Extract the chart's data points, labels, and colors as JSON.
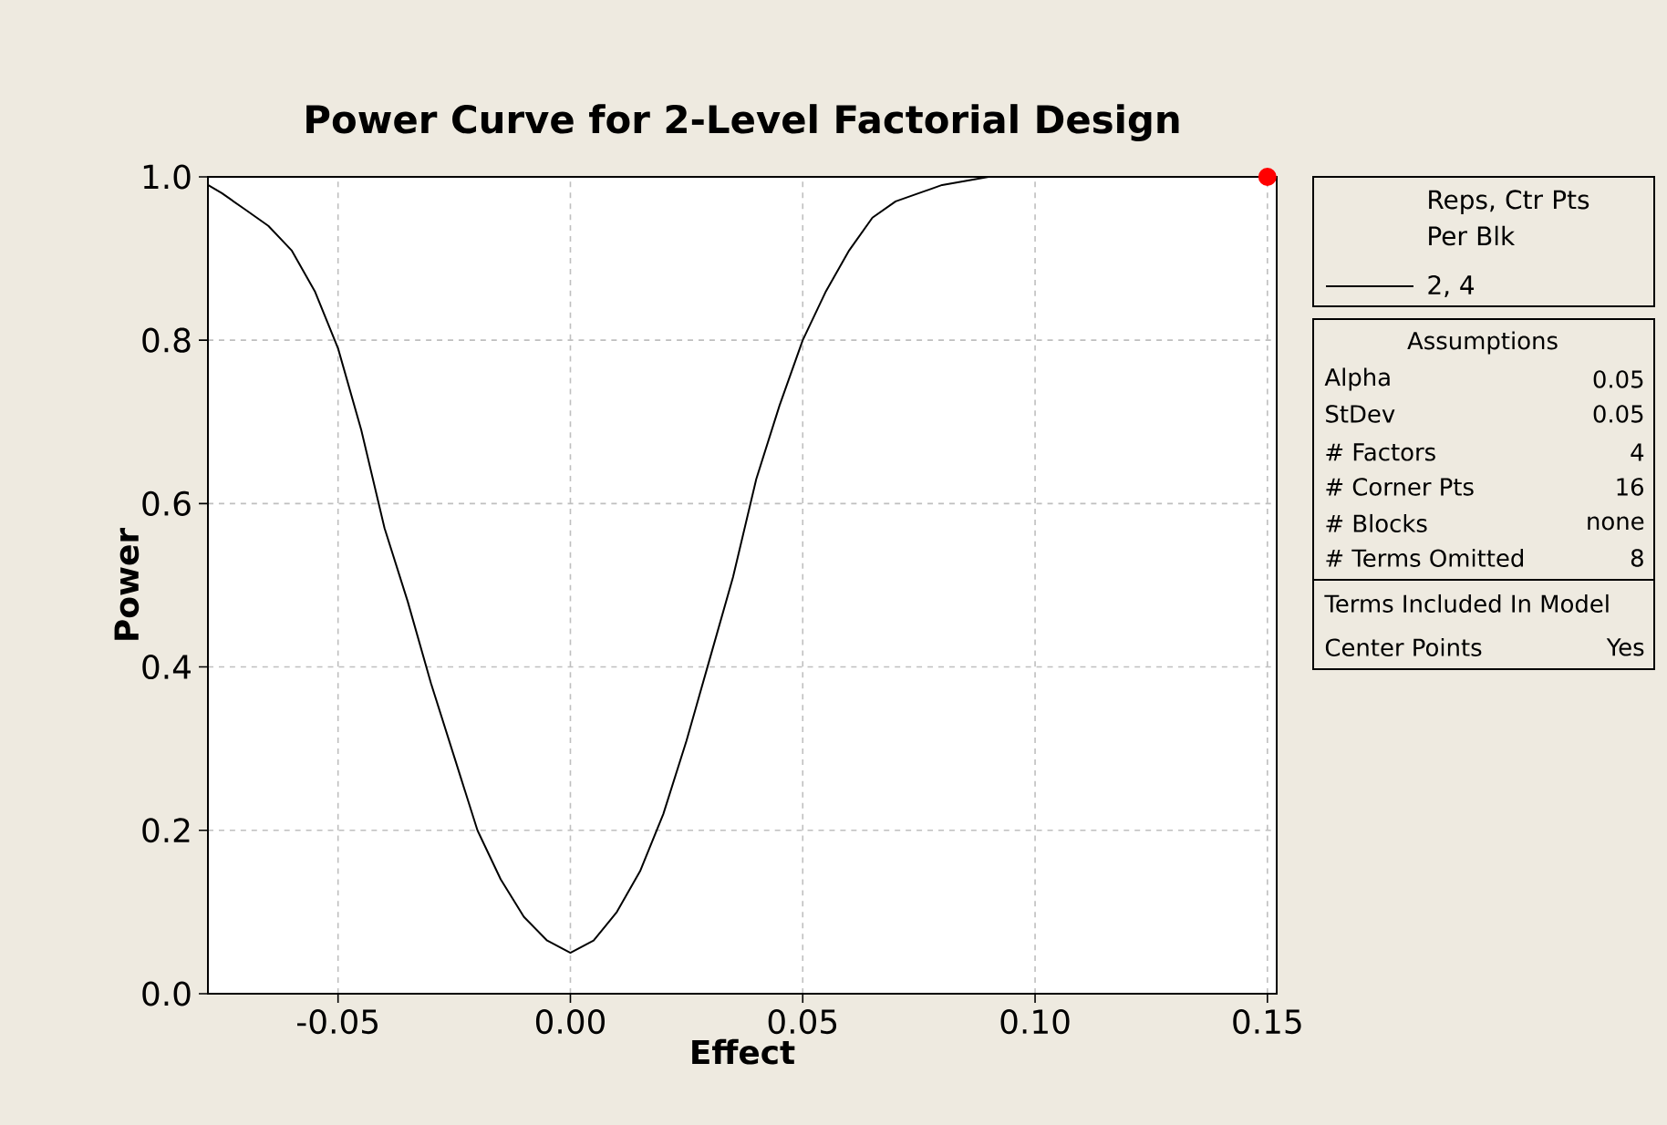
{
  "chart_data": {
    "type": "line",
    "title": "Power Curve for 2-Level Factorial Design",
    "xlabel": "Effect",
    "ylabel": "Power",
    "legend_title": "Reps, Ctr Pts Per Blk",
    "legend": "right",
    "series": [
      {
        "name": "2, 4",
        "type": "line",
        "color": "#000000",
        "marker": "none",
        "line_style": "solid",
        "x": [
          -0.078,
          -0.075,
          -0.07,
          -0.065,
          -0.06,
          -0.055,
          -0.05,
          -0.045,
          -0.04,
          -0.035,
          -0.03,
          -0.025,
          -0.02,
          -0.015,
          -0.01,
          -0.005,
          0,
          0.005,
          0.01,
          0.015,
          0.02,
          0.025,
          0.03,
          0.035,
          0.04,
          0.045,
          0.05,
          0.055,
          0.06,
          0.065,
          0.07,
          0.075,
          0.08,
          0.09
        ],
        "values": [
          0.99,
          0.98,
          0.96,
          0.94,
          0.91,
          0.86,
          0.79,
          0.69,
          0.57,
          0.48,
          0.38,
          0.29,
          0.2,
          0.14,
          0.094,
          0.065,
          0.05,
          0.065,
          0.1,
          0.15,
          0.22,
          0.31,
          0.41,
          0.51,
          0.63,
          0.72,
          0.8,
          0.86,
          0.91,
          0.95,
          0.97,
          0.98,
          0.99,
          1.0
        ]
      },
      {
        "type": "scatter",
        "color": "#ff0000",
        "marker": "circle",
        "x": [
          0.15
        ],
        "values": [
          1.0
        ]
      }
    ],
    "xlim": [
      -0.078,
      0.152
    ],
    "ylim": [
      0,
      1
    ],
    "xticks": [
      {
        "value": -0.05,
        "label": "-0.05"
      },
      {
        "value": 0,
        "label": "0.00"
      },
      {
        "value": 0.05,
        "label": "0.05"
      },
      {
        "value": 0.1,
        "label": "0.10"
      },
      {
        "value": 0.15,
        "label": "0.15"
      }
    ],
    "yticks": [
      {
        "value": 0,
        "label": "0.0"
      },
      {
        "value": 0.2,
        "label": "0.2"
      },
      {
        "value": 0.4,
        "label": "0.4"
      },
      {
        "value": 0.6,
        "label": "0.6"
      },
      {
        "value": 0.8,
        "label": "0.8"
      },
      {
        "value": 1,
        "label": "1.0"
      }
    ],
    "grid": true,
    "annotations": [
      "Assumptions",
      "Alpha",
      "0.05",
      "StDev",
      "0.05",
      "# Factors",
      "4",
      "# Corner Pts",
      "16",
      "# Blocks",
      "none",
      "# Terms Omitted",
      "8",
      "Terms Included In Model",
      "Center Points",
      "Yes"
    ]
  }
}
